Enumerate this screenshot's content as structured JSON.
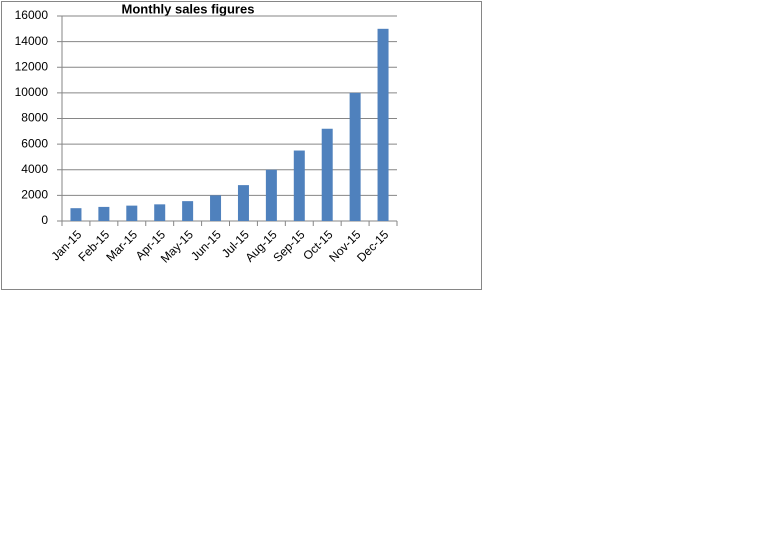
{
  "chart_data": {
    "type": "bar",
    "title": "Monthly sales figures",
    "categories": [
      "Jan-15",
      "Feb-15",
      "Mar-15",
      "Apr-15",
      "May-15",
      "Jun-15",
      "Jul-15",
      "Aug-15",
      "Sep-15",
      "Oct-15",
      "Nov-15",
      "Dec-15"
    ],
    "values": [
      1000,
      1100,
      1200,
      1300,
      1550,
      2000,
      2800,
      4000,
      5500,
      7200,
      10000,
      15000
    ],
    "color": "#4f81bd",
    "ylim": [
      0,
      16000
    ],
    "yticks": [
      0,
      2000,
      4000,
      6000,
      8000,
      10000,
      12000,
      14000,
      16000
    ],
    "grid": true
  }
}
